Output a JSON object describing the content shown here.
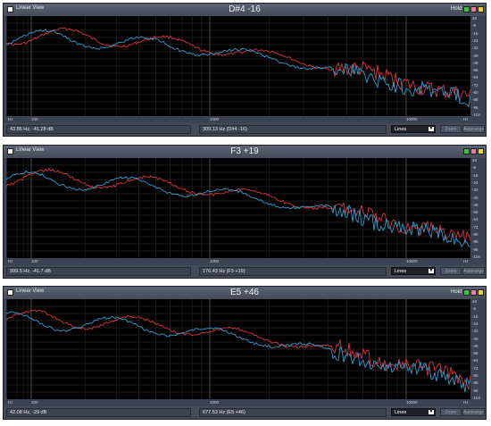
{
  "common": {
    "linear_view_label": "Linear View",
    "hold_label": "Hold",
    "dropdown_value": "Lines",
    "dropdown_arrow": "▼",
    "btn_zoom": "Zoom",
    "btn_autorange": "Autorange",
    "y_ticks": [
      "48",
      "-8",
      "-16",
      "-24",
      "-32",
      "-40",
      "-48",
      "-56",
      "-64",
      "-72",
      "-80",
      "-88",
      "-96",
      "-104"
    ],
    "x_ticks": [
      "Hz",
      "100",
      "1000",
      "10000",
      "Hz"
    ]
  },
  "panels": [
    {
      "title": "D#4 -16",
      "cursor_readout": "43.86 Hz, -41.28 dB",
      "note_readout": "309.13 Hz (D#4 -16)",
      "hold_visible": true
    },
    {
      "title": "F3 +19",
      "cursor_readout": "999.5 Hz, -41.7 dB",
      "note_readout": "176.43 Hz (F3 +19)",
      "hold_visible": false
    },
    {
      "title": "E5 +46",
      "cursor_readout": "42.08 Hz, -29 dB",
      "note_readout": "677.53 Hz (E5 +46)",
      "hold_visible": true
    }
  ],
  "colors": {
    "red_trace": "#d9343c",
    "blue_trace": "#2f9ccf",
    "plot_bg": "#000000",
    "green_btn": "#3fbf3f",
    "pink_btn": "#e57fa6",
    "yellow_btn": "#e8d23a"
  }
}
